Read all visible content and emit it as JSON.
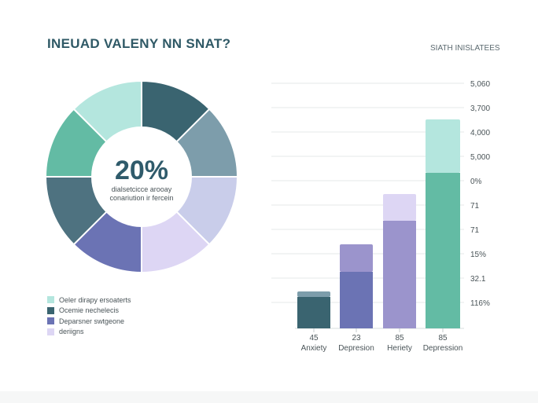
{
  "header": {
    "title": "INEUAD VALENY NN SNAT?",
    "subtitle": "SIATH INISLATEES"
  },
  "colors": {
    "dark_teal": "#3a6470",
    "teal": "#63bba4",
    "mint": "#b4e6de",
    "blue_gray": "#7d9dab",
    "indigo": "#6b73b4",
    "lavender": "#9b94cc",
    "pale_lavender": "#ddd6f4",
    "pale_periwinkle": "#c9cdea"
  },
  "chart_data": [
    {
      "type": "pie",
      "center_text": "20%",
      "center_subtext": [
        "dialsetcicce arooay",
        "conariution ir fercein"
      ],
      "slices": [
        {
          "value": 12.5,
          "color": "#3a6470"
        },
        {
          "value": 12.5,
          "color": "#7d9dab"
        },
        {
          "value": 12.5,
          "color": "#c9cdea"
        },
        {
          "value": 12.5,
          "color": "#ddd6f4"
        },
        {
          "value": 12.5,
          "color": "#6b73b4"
        },
        {
          "value": 12.5,
          "color": "#4e7280"
        },
        {
          "value": 12.5,
          "color": "#63bba4"
        },
        {
          "value": 12.5,
          "color": "#b4e6de"
        }
      ],
      "legend": [
        {
          "label": "Oeler dirapy ersoaterts",
          "color": "#b4e6de"
        },
        {
          "label": "Ocemie nechelecis",
          "color": "#3a6470"
        },
        {
          "label": "Deparsner swtgeone",
          "color": "#6b73b4"
        },
        {
          "label": "deriigns",
          "color": "#ddd6f4"
        }
      ]
    },
    {
      "type": "bar",
      "stacked": true,
      "categories": [
        "Anxiety",
        "Depresion",
        "Heriety",
        "Depression"
      ],
      "category_numbers": [
        "45",
        "23",
        "85",
        "85"
      ],
      "series": [
        {
          "values": [
            40,
            72,
            137,
            198
          ],
          "color": [
            "#3a6470",
            "#6b73b4",
            "#9b94cc",
            "#63bba4"
          ]
        },
        {
          "values": [
            7,
            35,
            34,
            68
          ],
          "color": [
            "#7d9dab",
            "#9b94cc",
            "#ddd6f4",
            "#b4e6de"
          ]
        }
      ],
      "ylim": [
        0,
        330
      ],
      "y_tick_labels": [
        "5,060",
        "3,700",
        "4,000",
        "5,000",
        "0%",
        "71",
        "71",
        "15%",
        "32.1",
        "116%"
      ],
      "grid": true
    }
  ]
}
